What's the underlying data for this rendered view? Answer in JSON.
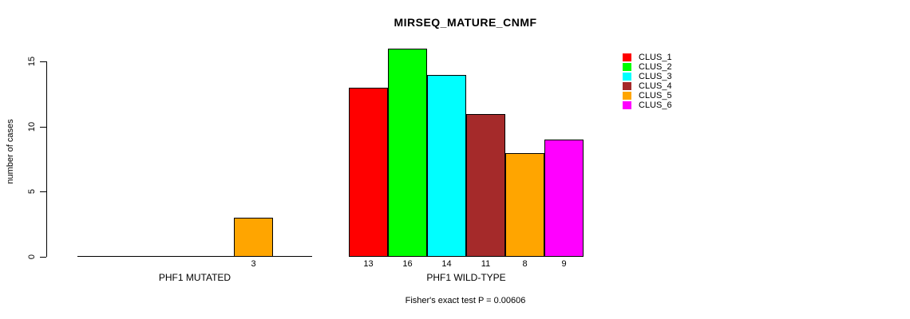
{
  "chart_data": {
    "type": "bar",
    "title": "MIRSEQ_MATURE_CNMF",
    "ylabel": "number of cases",
    "xlabel": "",
    "ylim": [
      0,
      15
    ],
    "yticks": [
      0,
      5,
      10,
      15
    ],
    "grid": false,
    "annotation": "Fisher's exact test P = 0.00606",
    "colors": {
      "axis": "#000000",
      "background": "#FFFFFF"
    },
    "legend": {
      "position": "top-right",
      "entries": [
        {
          "label": "CLUS_1",
          "color": "#FF0000"
        },
        {
          "label": "CLUS_2",
          "color": "#00FF00"
        },
        {
          "label": "CLUS_3",
          "color": "#00FFFF"
        },
        {
          "label": "CLUS_4",
          "color": "#A52A2A"
        },
        {
          "label": "CLUS_5",
          "color": "#FFA500"
        },
        {
          "label": "CLUS_6",
          "color": "#FF00FF"
        }
      ]
    },
    "groups": [
      {
        "label": "PHF1 MUTATED",
        "values": [
          0,
          0,
          0,
          0,
          3,
          0
        ]
      },
      {
        "label": "PHF1 WILD-TYPE",
        "values": [
          13,
          16,
          14,
          11,
          8,
          9
        ]
      }
    ]
  }
}
